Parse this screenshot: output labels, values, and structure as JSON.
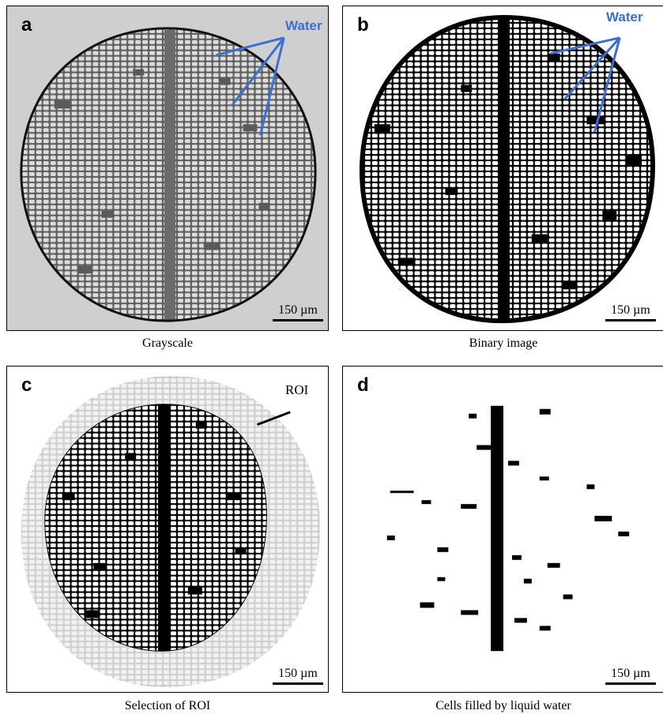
{
  "panels": [
    {
      "letter": "a",
      "caption": "Grayscale",
      "scale_label": "150 µm",
      "annotation": "Water"
    },
    {
      "letter": "b",
      "caption": "Binary image",
      "scale_label": "150 µm",
      "annotation": "Water"
    },
    {
      "letter": "c",
      "caption": "Selection of ROI",
      "scale_label": "150 µm",
      "annotation": "ROI"
    },
    {
      "letter": "d",
      "caption": "Cells filled by liquid water",
      "scale_label": "150 µm"
    }
  ],
  "colors": {
    "water_label": "#3b6fd0",
    "grayscale_background": "#cfcfcf",
    "outside_roi": "#d0d0d0",
    "ink": "#000000"
  }
}
